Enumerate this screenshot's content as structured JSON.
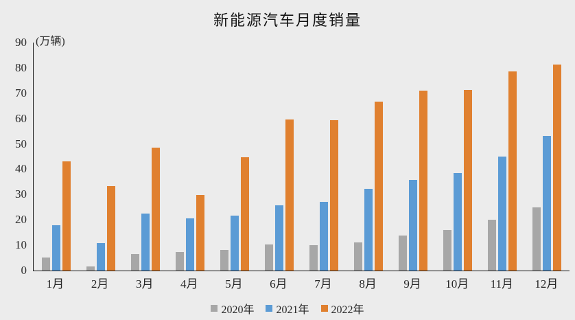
{
  "chart_data": {
    "type": "bar",
    "title": "新能源汽车月度销量",
    "unit_label": "(万辆)",
    "categories": [
      "1月",
      "2月",
      "3月",
      "4月",
      "5月",
      "6月",
      "7月",
      "8月",
      "9月",
      "10月",
      "11月",
      "12月"
    ],
    "series": [
      {
        "name": "2020年",
        "color": "#a7a7a7",
        "values": [
          5.2,
          1.6,
          6.5,
          7.3,
          8.2,
          10.4,
          9.9,
          11.0,
          13.9,
          16.0,
          20.0,
          24.9
        ]
      },
      {
        "name": "2021年",
        "color": "#5b9bd5",
        "values": [
          17.9,
          10.9,
          22.6,
          20.6,
          21.7,
          25.7,
          27.1,
          32.2,
          35.7,
          38.4,
          45.0,
          53.1
        ]
      },
      {
        "name": "2022年",
        "color": "#e0802f",
        "values": [
          43.0,
          33.3,
          48.5,
          29.9,
          44.7,
          59.6,
          59.3,
          66.6,
          70.9,
          71.4,
          78.6,
          81.4
        ]
      }
    ],
    "ylim": [
      0,
      90
    ],
    "yticks": [
      0,
      10,
      20,
      30,
      40,
      50,
      60,
      70,
      80,
      90
    ],
    "grid": false,
    "legend_position": "bottom",
    "colors": {
      "background": "#ececec",
      "axis": "#1f1f1f",
      "text": "#262626"
    }
  }
}
